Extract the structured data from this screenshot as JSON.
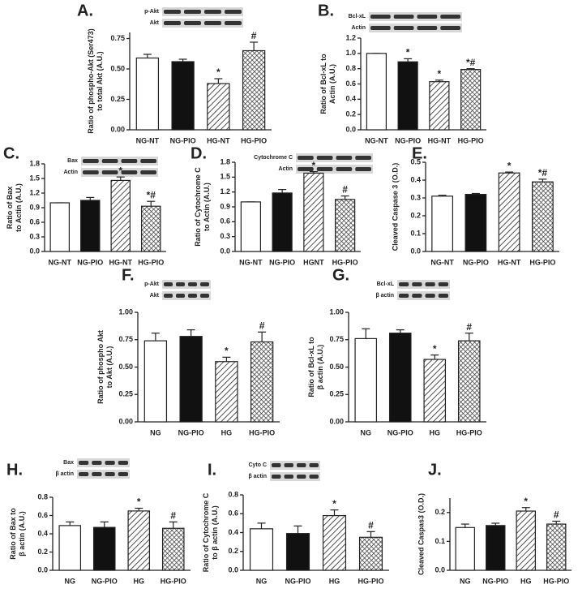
{
  "chart_data": [
    {
      "type": "bar",
      "panel": "A.",
      "blots": [
        "p-Akt",
        "Akt"
      ],
      "ylabel": [
        "Ratio of phospho-Akt (Ser473)",
        "to total Akt (A.U.)"
      ],
      "categories": [
        "NG-NT",
        "NG-PIO",
        "HG-NT",
        "HG-PIO"
      ],
      "values": [
        0.59,
        0.56,
        0.38,
        0.65
      ],
      "errors": [
        0.03,
        0.02,
        0.04,
        0.07
      ],
      "annotations": [
        {
          "index": 2,
          "text": "*"
        },
        {
          "index": 3,
          "text": "#"
        }
      ],
      "fills": [
        "white",
        "black",
        "hatch",
        "crosshatch"
      ],
      "ylim": [
        0,
        0.8
      ],
      "yticks": [
        {
          "value": 0,
          "label": "0.00"
        },
        0.25,
        {
          "value": 0.5,
          "label": "0.50"
        },
        0.75
      ]
    },
    {
      "type": "bar",
      "panel": "B.",
      "blots": [
        "Bcl-xL",
        "Actin"
      ],
      "ylabel": [
        "Ratio of Bcl-xL to",
        "Actin (A.U.)"
      ],
      "categories": [
        "NG-NT",
        "NG-PIO",
        "HG-NT",
        "HG-PIO"
      ],
      "values": [
        1.0,
        0.89,
        0.63,
        0.79
      ],
      "errors": [
        0,
        0.04,
        0.02,
        0.01
      ],
      "annotations": [
        {
          "index": 1,
          "text": "*"
        },
        {
          "index": 2,
          "text": "*"
        },
        {
          "index": 3,
          "text": "*#"
        }
      ],
      "fills": [
        "white",
        "black",
        "hatch",
        "crosshatch"
      ],
      "ylim": [
        0,
        1.2
      ],
      "yticks": [
        {
          "value": 0,
          "label": "0.0"
        },
        0.2,
        0.4,
        0.6,
        0.8,
        {
          "value": 1,
          "label": "1.0"
        },
        1.2
      ]
    },
    {
      "type": "bar",
      "panel": "C.",
      "blots": [
        "Bax",
        "Actin"
      ],
      "ylabel": [
        "Ratio of Bax",
        "to Actin (A.U.)"
      ],
      "categories": [
        "NG-NT",
        "NG-PIO",
        "HG-NT",
        "HG-PIO"
      ],
      "values": [
        1.0,
        1.05,
        1.46,
        0.93
      ],
      "errors": [
        0,
        0.06,
        0.07,
        0.1
      ],
      "annotations": [
        {
          "index": 2,
          "text": "*"
        },
        {
          "index": 3,
          "text": "*#"
        }
      ],
      "fills": [
        "white",
        "black",
        "hatch",
        "crosshatch"
      ],
      "ylim": [
        0,
        1.8
      ],
      "yticks": [
        {
          "value": 0,
          "label": "0.0"
        },
        0.3,
        0.6,
        0.9,
        1.2,
        1.5,
        1.8
      ]
    },
    {
      "type": "bar",
      "panel": "D.",
      "blots": [
        "Cytochrome C",
        "Actin"
      ],
      "ylabel": [
        "Ratio of Cytochrome C",
        "to Actin (A.U.)"
      ],
      "categories": [
        "NG-NT",
        "NG-PIO",
        "HGNT",
        "HG-PIO"
      ],
      "values": [
        1.0,
        1.18,
        1.58,
        1.05
      ],
      "errors": [
        0,
        0.07,
        0.03,
        0.07
      ],
      "annotations": [
        {
          "index": 2,
          "text": "*"
        },
        {
          "index": 3,
          "text": "#"
        }
      ],
      "fills": [
        "white",
        "black",
        "hatch",
        "crosshatch"
      ],
      "ylim": [
        0,
        1.8
      ],
      "yticks": [
        {
          "value": 0,
          "label": "0.0"
        },
        0.3,
        0.6,
        0.9,
        1.2,
        1.5,
        1.8
      ]
    },
    {
      "type": "bar",
      "panel": "E.",
      "blots": [],
      "ylabel": [
        "Cleaved Caspase 3 (O.D.)"
      ],
      "categories": [
        "NG-NT",
        "NG-PIO",
        "HG-NT",
        "HG-PIO"
      ],
      "values": [
        0.31,
        0.32,
        0.44,
        0.39
      ],
      "errors": [
        0.005,
        0.005,
        0.005,
        0.015
      ],
      "annotations": [
        {
          "index": 2,
          "text": "*"
        },
        {
          "index": 3,
          "text": "*#"
        }
      ],
      "fills": [
        "white",
        "black",
        "hatch",
        "crosshatch"
      ],
      "ylim": [
        0,
        0.5
      ],
      "yticks": [
        {
          "value": 0,
          "label": "0.0"
        },
        0.1,
        0.2,
        0.3,
        0.4,
        0.5
      ]
    },
    {
      "type": "bar",
      "panel": "F.",
      "blots": [
        "p-Akt",
        "Akt"
      ],
      "ylabel": [
        "Ratio of phospho Akt",
        "to Akt (A.U.)"
      ],
      "categories": [
        "NG",
        "NG-PIO",
        "HG",
        "HG-PIO"
      ],
      "values": [
        0.74,
        0.78,
        0.55,
        0.73
      ],
      "errors": [
        0.07,
        0.06,
        0.04,
        0.09
      ],
      "annotations": [
        {
          "index": 2,
          "text": "*"
        },
        {
          "index": 3,
          "text": "#"
        }
      ],
      "fills": [
        "white",
        "black",
        "hatch",
        "crosshatch"
      ],
      "ylim": [
        0,
        1
      ],
      "yticks": [
        {
          "value": 0,
          "label": "0.00"
        },
        0.25,
        {
          "value": 0.5,
          "label": "0.50"
        },
        0.75,
        {
          "value": 1,
          "label": "1.00"
        }
      ]
    },
    {
      "type": "bar",
      "panel": "G.",
      "blots": [
        "Bcl-xL",
        "β actin"
      ],
      "ylabel": [
        "Ratio of Bcl-xL to",
        "β actin (A.U.)"
      ],
      "categories": [
        "NG",
        "NG-PIO",
        "HG",
        "HG-PIO"
      ],
      "values": [
        0.76,
        0.81,
        0.57,
        0.74
      ],
      "errors": [
        0.09,
        0.03,
        0.04,
        0.07
      ],
      "annotations": [
        {
          "index": 2,
          "text": "*"
        },
        {
          "index": 3,
          "text": "#"
        }
      ],
      "fills": [
        "white",
        "black",
        "hatch",
        "crosshatch"
      ],
      "ylim": [
        0,
        1
      ],
      "yticks": [
        {
          "value": 0,
          "label": "0.00"
        },
        0.25,
        {
          "value": 0.5,
          "label": "0.50"
        },
        0.75,
        {
          "value": 1,
          "label": "1.00"
        }
      ]
    },
    {
      "type": "bar",
      "panel": "H.",
      "blots": [
        "Bax",
        "β actin"
      ],
      "ylabel": [
        "Ratio of Bax to",
        "β actin (A.U.)"
      ],
      "categories": [
        "NG",
        "NG-PIO",
        "HG",
        "HG-PIO"
      ],
      "values": [
        0.49,
        0.47,
        0.65,
        0.46
      ],
      "errors": [
        0.04,
        0.06,
        0.03,
        0.07
      ],
      "annotations": [
        {
          "index": 2,
          "text": "*"
        },
        {
          "index": 3,
          "text": "#"
        }
      ],
      "fills": [
        "white",
        "black",
        "hatch",
        "crosshatch"
      ],
      "ylim": [
        0,
        0.8
      ],
      "yticks": [
        {
          "value": 0,
          "label": "0.0"
        },
        0.2,
        0.4,
        0.6,
        0.8
      ]
    },
    {
      "type": "bar",
      "panel": "I.",
      "blots": [
        "Cyto C",
        "β actin"
      ],
      "ylabel": [
        "Ratio of Cytochrome C",
        "to β actin (A.U.)"
      ],
      "categories": [
        "NG",
        "NG-PIO",
        "HG",
        "HG-PIO"
      ],
      "values": [
        0.44,
        0.39,
        0.58,
        0.35
      ],
      "errors": [
        0.06,
        0.08,
        0.06,
        0.06
      ],
      "annotations": [
        {
          "index": 2,
          "text": "*"
        },
        {
          "index": 3,
          "text": "#"
        }
      ],
      "fills": [
        "white",
        "black",
        "hatch",
        "crosshatch"
      ],
      "ylim": [
        0,
        0.8
      ],
      "yticks": [
        {
          "value": 0,
          "label": "0.0"
        },
        0.2,
        0.4,
        0.6,
        0.8
      ]
    },
    {
      "type": "bar",
      "panel": "J.",
      "blots": [],
      "ylabel": [
        "Cleaved Caspas3 (O.D.)"
      ],
      "categories": [
        "NG",
        "NG-PIO",
        "HG",
        "HG-PIO"
      ],
      "values": [
        0.148,
        0.155,
        0.205,
        0.16
      ],
      "errors": [
        0.012,
        0.008,
        0.012,
        0.01
      ],
      "annotations": [
        {
          "index": 2,
          "text": "*"
        },
        {
          "index": 3,
          "text": "#"
        }
      ],
      "fills": [
        "white",
        "black",
        "hatch",
        "crosshatch"
      ],
      "ylim": [
        0,
        0.25
      ],
      "yticks": [
        {
          "value": 0,
          "label": "0.0"
        },
        0.1,
        0.2
      ]
    }
  ]
}
